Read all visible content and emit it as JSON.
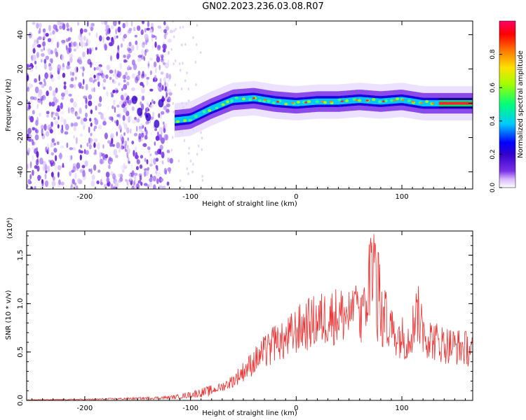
{
  "title": "GN02.2023.236.03.08.R07",
  "chart_data": [
    {
      "type": "heatmap",
      "xlabel": "Height of straight line (km)",
      "ylabel": "Frequency (Hz)",
      "xlim": [
        -255,
        167
      ],
      "ylim": [
        -50,
        48
      ],
      "xticks": [
        -200,
        -100,
        0,
        100
      ],
      "yticks": [
        -40,
        -20,
        0,
        20,
        40
      ],
      "grid": false,
      "colorbar": {
        "label": "Normalized spectral amplitude",
        "range": [
          0,
          1
        ],
        "ticks": [
          "0.0",
          "0.2",
          "0.4",
          "0.6",
          "0.8"
        ],
        "colors": [
          "#ffffff",
          "#d9b8ff",
          "#7a2fe6",
          "#3300cc",
          "#0000ff",
          "#00c8ff",
          "#00ff7a",
          "#a0ff00",
          "#ffe000",
          "#ff7a00",
          "#ff0000",
          "#ff0066"
        ]
      },
      "trace": {
        "x": [
          -115,
          -100,
          -90,
          -80,
          -60,
          -40,
          -20,
          0,
          20,
          40,
          60,
          80,
          100,
          120,
          135,
          167
        ],
        "frequency": [
          -10,
          -9,
          -6,
          -3,
          2,
          3,
          1,
          0,
          1,
          1,
          2,
          1,
          2,
          0,
          0,
          0
        ]
      },
      "noise_region": {
        "x_range": [
          -255,
          -118
        ],
        "frequency_range": [
          -50,
          48
        ]
      }
    },
    {
      "type": "line",
      "xlabel": "Height of straight line (km)",
      "ylabel": "SNR (10 * v/v)",
      "y_multiplier": "(x10⁴)",
      "xlim": [
        -255,
        167
      ],
      "ylim": [
        0,
        1.75
      ],
      "xticks": [
        -200,
        -100,
        0,
        100
      ],
      "yticks": [
        0.0,
        0.5,
        1.0,
        1.5
      ],
      "ytick_labels": [
        "0.0",
        "0.5",
        "1.0",
        "1.5"
      ],
      "series": [
        {
          "color": "#ee3333",
          "x": [
            -255,
            -200,
            -150,
            -120,
            -110,
            -100,
            -90,
            -80,
            -70,
            -60,
            -50,
            -40,
            -30,
            -20,
            -10,
            0,
            10,
            20,
            30,
            40,
            50,
            60,
            70,
            75,
            80,
            90,
            100,
            105,
            110,
            115,
            120,
            130,
            140,
            150,
            160,
            167
          ],
          "y": [
            0.005,
            0.01,
            0.02,
            0.03,
            0.04,
            0.06,
            0.08,
            0.1,
            0.14,
            0.2,
            0.3,
            0.4,
            0.5,
            0.55,
            0.62,
            0.72,
            0.78,
            0.82,
            0.86,
            0.88,
            0.88,
            0.86,
            0.9,
            0.95,
            0.85,
            0.72,
            0.66,
            0.62,
            0.75,
            0.9,
            0.7,
            0.62,
            0.58,
            0.56,
            0.54,
            0.52
          ],
          "peaks": [
            {
              "x": -22,
              "y": 0.88
            },
            {
              "x": 57,
              "y": 1.22
            },
            {
              "x": 70,
              "y": 1.72
            },
            {
              "x": 74,
              "y": 1.76
            },
            {
              "x": 85,
              "y": 1.2
            },
            {
              "x": 115,
              "y": 1.1
            }
          ]
        }
      ]
    }
  ]
}
